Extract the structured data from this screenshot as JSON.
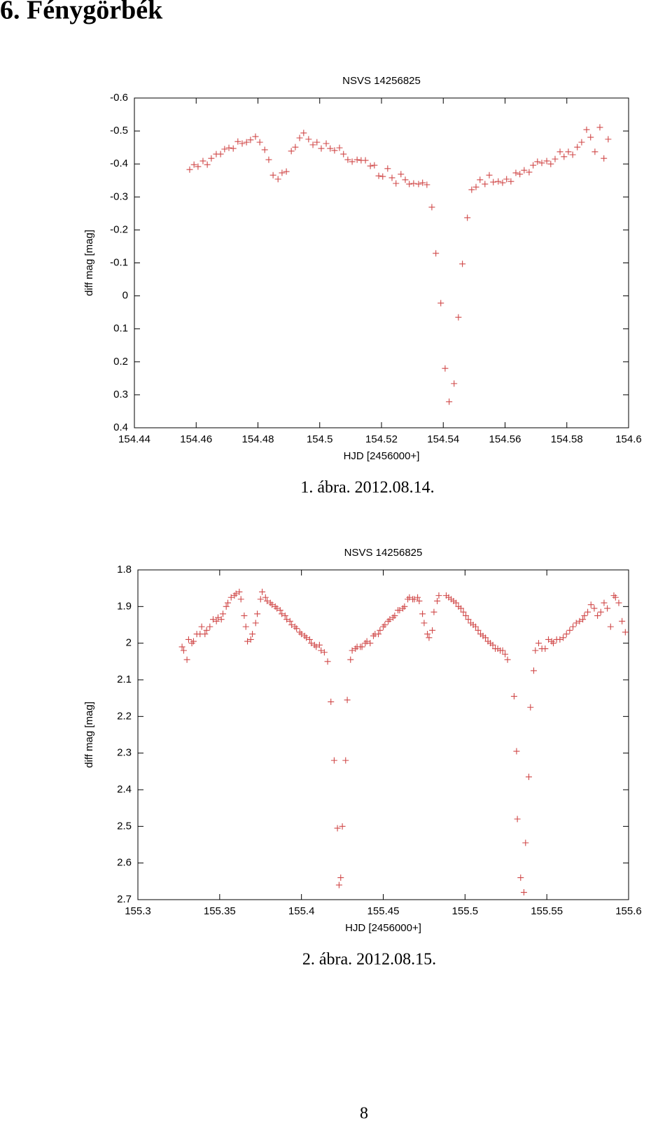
{
  "heading": "6. Fénygörbék",
  "page_number": "8",
  "chart_data": [
    {
      "type": "scatter",
      "title": "NSVS 14256825",
      "xlabel": "HJD [2456000+]",
      "ylabel": "diff mag [mag]",
      "caption": "1. ábra. 2012.08.14.",
      "color": "#d04848",
      "marker": "+",
      "invert_y": true,
      "xlim": [
        154.44,
        154.6
      ],
      "xticks": [
        154.44,
        154.46,
        154.48,
        154.5,
        154.52,
        154.54,
        154.56,
        154.58,
        154.6
      ],
      "ylim": [
        -0.6,
        0.4
      ],
      "yticks": [
        -0.6,
        -0.5,
        -0.4,
        -0.3,
        -0.2,
        -0.1,
        0,
        0.1,
        0.2,
        0.3,
        0.4
      ],
      "x": [
        154.4579,
        154.4593,
        154.4606,
        154.4622,
        154.4636,
        154.4649,
        154.4665,
        154.4679,
        154.4692,
        154.4706,
        154.472,
        154.4735,
        154.4749,
        154.4763,
        154.4776,
        154.4792,
        154.4806,
        154.4822,
        154.4835,
        154.4849,
        154.4865,
        154.4878,
        154.4892,
        154.4908,
        154.4921,
        154.4935,
        154.4948,
        154.4964,
        154.4978,
        154.4991,
        154.5005,
        154.5021,
        154.5034,
        154.5048,
        154.5064,
        154.5077,
        154.5091,
        154.5105,
        154.5121,
        154.5134,
        154.5148,
        154.5164,
        154.5177,
        154.5191,
        154.5204,
        154.522,
        154.5234,
        154.5247,
        154.5263,
        154.5277,
        154.529,
        154.5304,
        154.532,
        154.5333,
        154.5347,
        154.5363,
        154.5376,
        154.5392,
        154.5406,
        154.5419,
        154.5435,
        154.5449,
        154.5462,
        154.5478,
        154.5492,
        154.5506,
        154.5519,
        154.5535,
        154.5549,
        154.5562,
        154.5578,
        154.5592,
        154.5605,
        154.5619,
        154.5635,
        154.5648,
        154.5662,
        154.5678,
        154.5691,
        154.5705,
        154.5719,
        154.5735,
        154.5748,
        154.5762,
        154.5778,
        154.5791,
        154.5805,
        154.5819,
        154.5834,
        154.5848,
        154.5864,
        154.5877,
        154.5891,
        154.5907,
        154.592,
        154.5934
      ],
      "values": [
        -0.383,
        -0.398,
        -0.392,
        -0.409,
        -0.398,
        -0.417,
        -0.43,
        -0.43,
        -0.445,
        -0.449,
        -0.447,
        -0.468,
        -0.462,
        -0.466,
        -0.473,
        -0.483,
        -0.466,
        -0.443,
        -0.413,
        -0.366,
        -0.354,
        -0.373,
        -0.377,
        -0.439,
        -0.451,
        -0.479,
        -0.494,
        -0.475,
        -0.458,
        -0.466,
        -0.447,
        -0.462,
        -0.447,
        -0.441,
        -0.449,
        -0.43,
        -0.413,
        -0.407,
        -0.413,
        -0.411,
        -0.411,
        -0.394,
        -0.396,
        -0.364,
        -0.362,
        -0.386,
        -0.358,
        -0.341,
        -0.369,
        -0.352,
        -0.339,
        -0.341,
        -0.339,
        -0.343,
        -0.337,
        -0.269,
        -0.129,
        0.022,
        0.22,
        0.321,
        0.266,
        0.065,
        -0.097,
        -0.237,
        -0.322,
        -0.33,
        -0.352,
        -0.339,
        -0.366,
        -0.345,
        -0.347,
        -0.343,
        -0.354,
        -0.347,
        -0.373,
        -0.369,
        -0.381,
        -0.375,
        -0.396,
        -0.407,
        -0.403,
        -0.409,
        -0.4,
        -0.415,
        -0.437,
        -0.422,
        -0.437,
        -0.428,
        -0.451,
        -0.466,
        -0.504,
        -0.481,
        -0.437,
        -0.511,
        -0.417,
        -0.475
      ]
    },
    {
      "type": "scatter",
      "title": "NSVS 14256825",
      "xlabel": "HJD [2456000+]",
      "ylabel": "diff mag [mag]",
      "caption": "2. ábra. 2012.08.15.",
      "color": "#d04848",
      "marker": "+",
      "invert_y": true,
      "xlim": [
        155.3,
        155.6
      ],
      "xticks": [
        155.3,
        155.35,
        155.4,
        155.45,
        155.5,
        155.55,
        155.6
      ],
      "ylim": [
        1.8,
        2.7
      ],
      "yticks": [
        1.8,
        1.9,
        2,
        2.1,
        2.2,
        2.3,
        2.4,
        2.5,
        2.6,
        2.7
      ],
      "x": [
        155.327,
        155.328,
        155.33,
        155.331,
        155.333,
        155.334,
        155.336,
        155.338,
        155.339,
        155.341,
        155.342,
        155.344,
        155.346,
        155.348,
        155.349,
        155.351,
        155.352,
        155.354,
        155.355,
        155.357,
        155.359,
        155.36,
        155.362,
        155.363,
        155.365,
        155.366,
        155.367,
        155.369,
        155.37,
        155.372,
        155.373,
        155.375,
        155.376,
        155.378,
        155.379,
        155.381,
        155.382,
        155.384,
        155.385,
        155.387,
        155.388,
        155.39,
        155.391,
        155.393,
        155.394,
        155.396,
        155.397,
        155.399,
        155.4,
        155.402,
        155.403,
        155.405,
        155.406,
        155.408,
        155.409,
        155.411,
        155.412,
        155.414,
        155.416,
        155.418,
        155.42,
        155.422,
        155.423,
        155.424,
        155.425,
        155.427,
        155.428,
        155.43,
        155.431,
        155.433,
        155.434,
        155.436,
        155.437,
        155.439,
        155.44,
        155.442,
        155.444,
        155.445,
        155.447,
        155.448,
        155.45,
        155.451,
        155.453,
        155.454,
        155.456,
        155.457,
        155.459,
        155.46,
        155.462,
        155.463,
        155.465,
        155.466,
        155.468,
        155.469,
        155.471,
        155.472,
        155.474,
        155.475,
        155.477,
        155.478,
        155.48,
        155.481,
        155.483,
        155.484,
        155.4885,
        155.49,
        155.4915,
        155.493,
        155.4945,
        155.496,
        155.4975,
        155.499,
        155.5005,
        155.502,
        155.5035,
        155.505,
        155.5065,
        155.508,
        155.5095,
        155.511,
        155.5125,
        155.514,
        155.5155,
        155.517,
        155.5185,
        155.52,
        155.5215,
        155.523,
        155.5245,
        155.526,
        155.53,
        155.5315,
        155.532,
        155.534,
        155.536,
        155.537,
        155.539,
        155.54,
        155.542,
        155.543,
        155.545,
        155.547,
        155.549,
        155.551,
        155.553,
        155.554,
        155.556,
        155.558,
        155.56,
        155.562,
        155.564,
        155.566,
        155.568,
        155.57,
        155.572,
        155.573,
        155.575,
        155.577,
        155.579,
        155.581,
        155.583,
        155.585,
        155.587,
        155.589,
        155.591,
        155.592,
        155.594,
        155.596,
        155.598
      ],
      "values": [
        2.01,
        2.02,
        2.045,
        1.99,
        2.0,
        1.995,
        1.975,
        1.975,
        1.955,
        1.975,
        1.965,
        1.955,
        1.935,
        1.94,
        1.93,
        1.935,
        1.92,
        1.9,
        1.89,
        1.875,
        1.87,
        1.865,
        1.86,
        1.88,
        1.925,
        1.955,
        1.995,
        1.99,
        1.975,
        1.945,
        1.92,
        1.88,
        1.86,
        1.875,
        1.885,
        1.89,
        1.895,
        1.9,
        1.905,
        1.91,
        1.92,
        1.925,
        1.935,
        1.94,
        1.95,
        1.955,
        1.96,
        1.97,
        1.975,
        1.98,
        1.985,
        1.99,
        2.0,
        2.005,
        2.01,
        2.005,
        2.02,
        2.025,
        2.05,
        2.16,
        2.32,
        2.505,
        2.66,
        2.64,
        2.5,
        2.32,
        2.155,
        2.045,
        2.02,
        2.015,
        2.01,
        2.01,
        2.01,
        2.0,
        1.995,
        2.0,
        1.98,
        1.975,
        1.975,
        1.965,
        1.955,
        1.95,
        1.94,
        1.935,
        1.93,
        1.925,
        1.91,
        1.91,
        1.905,
        1.9,
        1.88,
        1.875,
        1.88,
        1.88,
        1.875,
        1.885,
        1.92,
        1.945,
        1.975,
        1.985,
        1.965,
        1.915,
        1.885,
        1.87,
        1.87,
        1.875,
        1.88,
        1.885,
        1.89,
        1.9,
        1.905,
        1.915,
        1.925,
        1.935,
        1.945,
        1.95,
        1.955,
        1.965,
        1.975,
        1.98,
        1.985,
        1.995,
        2.0,
        2.005,
        2.015,
        2.015,
        2.02,
        2.02,
        2.03,
        2.045,
        2.145,
        2.295,
        2.48,
        2.64,
        2.68,
        2.545,
        2.365,
        2.175,
        2.075,
        2.02,
        2.0,
        2.015,
        2.015,
        1.99,
        1.995,
        2.0,
        1.99,
        1.99,
        1.985,
        1.975,
        1.965,
        1.955,
        1.945,
        1.94,
        1.935,
        1.925,
        1.915,
        1.895,
        1.905,
        1.925,
        1.915,
        1.89,
        1.905,
        1.955,
        1.87,
        1.875,
        1.89,
        1.94,
        1.97
      ]
    }
  ]
}
